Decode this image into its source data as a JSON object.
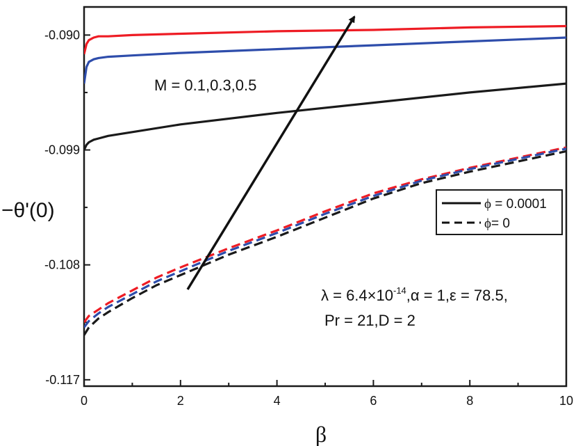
{
  "chart_data": {
    "type": "line",
    "title": "",
    "xlabel": "β",
    "ylabel": "−θ'(0)",
    "xlim": [
      0,
      10
    ],
    "ylim": [
      -0.1175,
      -0.0878
    ],
    "x_ticks": [
      0,
      2,
      4,
      6,
      8,
      10
    ],
    "x_tick_labels": [
      "0",
      "2",
      "4",
      "6",
      "8",
      "10"
    ],
    "y_ticks": [
      -0.09,
      -0.099,
      -0.108,
      -0.117
    ],
    "y_tick_labels": [
      "-0.090",
      "-0.099",
      "-0.108",
      "-0.117"
    ],
    "grid": false,
    "legend_position": "right-middle",
    "legend": [
      {
        "label_prefix": "ϕ",
        "label_value": " = 0.0001",
        "style": "solid"
      },
      {
        "label_prefix": "ϕ",
        "label_value": "= 0",
        "style": "dashed"
      }
    ],
    "annotations": {
      "arrow_label": "M = 0.1,0.3,0.5",
      "params_line1_a": "λ = 6.4×10",
      "params_line1_exp": "-14",
      "params_line1_b": ",α = 1,ε = 78.5,",
      "params_line2": "Pr = 21,D = 2"
    },
    "series": [
      {
        "name": "M = 0.1, ϕ = 0.0001",
        "color": "#ee1c24",
        "style": "solid",
        "x": [
          0,
          0.05,
          0.1,
          0.2,
          0.3,
          0.5,
          1,
          2,
          4,
          6,
          8,
          10
        ],
        "y": [
          -0.0915,
          -0.0907,
          -0.0904,
          -0.0902,
          -0.0901,
          -0.0901,
          -0.09,
          -0.0899,
          -0.0897,
          -0.0896,
          -0.0894,
          -0.0893
        ]
      },
      {
        "name": "M = 0.3, ϕ = 0.0001",
        "color": "#2e4dab",
        "style": "solid",
        "x": [
          0,
          0.05,
          0.1,
          0.2,
          0.3,
          0.5,
          1,
          2,
          4,
          6,
          8,
          10
        ],
        "y": [
          -0.0938,
          -0.0925,
          -0.0921,
          -0.0919,
          -0.0918,
          -0.0917,
          -0.0916,
          -0.0914,
          -0.0911,
          -0.0908,
          -0.0905,
          -0.0902
        ]
      },
      {
        "name": "M = 0.5, ϕ = 0.0001",
        "color": "#1a1a1a",
        "style": "solid",
        "x": [
          0,
          0.05,
          0.1,
          0.2,
          0.3,
          0.5,
          1,
          2,
          4,
          6,
          8,
          10
        ],
        "y": [
          -0.099,
          -0.0986,
          -0.0984,
          -0.0982,
          -0.0981,
          -0.0979,
          -0.0976,
          -0.097,
          -0.0961,
          -0.0953,
          -0.0945,
          -0.0938
        ]
      },
      {
        "name": "M = 0.1, ϕ = 0",
        "color": "#ee1c24",
        "style": "dashed",
        "x": [
          0,
          0.1,
          0.3,
          0.5,
          1,
          1.5,
          2,
          3,
          4,
          5,
          6,
          7,
          8,
          10
        ],
        "y": [
          -0.1125,
          -0.112,
          -0.1115,
          -0.111,
          -0.11,
          -0.109,
          -0.1082,
          -0.1067,
          -0.1053,
          -0.1038,
          -0.1024,
          -0.1013,
          -0.1004,
          -0.0988
        ]
      },
      {
        "name": "M = 0.3, ϕ = 0",
        "color": "#2e4dab",
        "style": "dashed",
        "x": [
          0,
          0.1,
          0.3,
          0.5,
          1,
          1.5,
          2,
          3,
          4,
          5,
          6,
          7,
          8,
          10
        ],
        "y": [
          -0.1129,
          -0.1124,
          -0.1118,
          -0.1113,
          -0.1103,
          -0.1093,
          -0.1085,
          -0.1069,
          -0.1055,
          -0.104,
          -0.1026,
          -0.1014,
          -0.1005,
          -0.0989
        ]
      },
      {
        "name": "M = 0.5, ϕ = 0",
        "color": "#1a1a1a",
        "style": "dashed",
        "x": [
          0,
          0.1,
          0.3,
          0.5,
          1,
          1.5,
          2,
          3,
          4,
          5,
          6,
          7,
          8,
          10
        ],
        "y": [
          -0.1135,
          -0.1129,
          -0.1122,
          -0.1117,
          -0.1106,
          -0.1096,
          -0.1088,
          -0.1072,
          -0.1058,
          -0.1043,
          -0.1028,
          -0.1016,
          -0.1007,
          -0.0991
        ]
      }
    ]
  }
}
